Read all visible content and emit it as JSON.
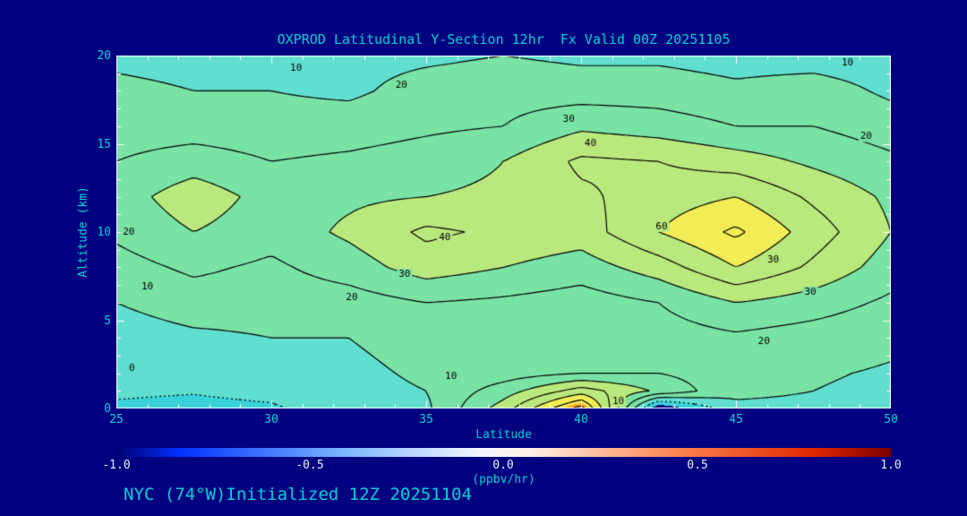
{
  "title": "OXPROD Latitudinal Y-Section 12hr  Fx Valid 00Z 20251105",
  "footer": "NYC (74°W)Initialized 12Z 20251104",
  "colors": {
    "background": "#000080",
    "text_accent": "#00d2d2",
    "axis": "#ffffff",
    "contour_line": "#000000",
    "colorbar_tick_text": "#e8eef5"
  },
  "chart_data": {
    "type": "heatmap",
    "title": "OXPROD Latitudinal Y-Section 12hr  Fx Valid 00Z 20251105",
    "xlabel": "Latitude",
    "ylabel": "Altitude (km)",
    "xlim": [
      25,
      50
    ],
    "ylim": [
      0,
      20
    ],
    "x_ticks": [
      "25",
      "30",
      "35",
      "40",
      "45",
      "50"
    ],
    "y_ticks": [
      "0",
      "5",
      "10",
      "15",
      "20"
    ],
    "lats": [
      25,
      27.5,
      30,
      32.5,
      35,
      37.5,
      40,
      42.5,
      45,
      47.5,
      50
    ],
    "alts": [
      0,
      1,
      2,
      4,
      6,
      8,
      10,
      12,
      14,
      16,
      18,
      20
    ],
    "values": [
      [
        -1,
        -2,
        -1,
        4,
        8,
        35,
        75,
        -20,
        8,
        8,
        6
      ],
      [
        1,
        0.5,
        2,
        6,
        10,
        25,
        45,
        28,
        12,
        10,
        8
      ],
      [
        2,
        3,
        5,
        7,
        12,
        15,
        20,
        20,
        14,
        11,
        9
      ],
      [
        5,
        8,
        10,
        10,
        15,
        12,
        12,
        15,
        18,
        15,
        12
      ],
      [
        10,
        15,
        14,
        15,
        20,
        18,
        15,
        20,
        30,
        25,
        18
      ],
      [
        16,
        22,
        18,
        25,
        35,
        30,
        25,
        35,
        50,
        38,
        25
      ],
      [
        22,
        30,
        24,
        32,
        42,
        38,
        35,
        50,
        62,
        45,
        30
      ],
      [
        25,
        36,
        26,
        28,
        30,
        32,
        38,
        45,
        50,
        38,
        28
      ],
      [
        20,
        25,
        20,
        22,
        25,
        30,
        42,
        40,
        35,
        28,
        22
      ],
      [
        15,
        15,
        14,
        15,
        18,
        20,
        28,
        25,
        20,
        20,
        15
      ],
      [
        12,
        10,
        10,
        8,
        14,
        16,
        15,
        15,
        12,
        15,
        8
      ],
      [
        8,
        7,
        8,
        7,
        8,
        10,
        8,
        8,
        6,
        5,
        4
      ]
    ],
    "contour_levels": [
      0,
      10,
      20,
      30,
      40,
      50,
      60,
      70
    ],
    "fill_bands": [
      {
        "max": -10,
        "color": "#000080"
      },
      {
        "max": 0,
        "color": "#38d2d8"
      },
      {
        "max": 10,
        "color": "#60ded0"
      },
      {
        "max": 30,
        "color": "#79e2a5"
      },
      {
        "max": 50,
        "color": "#b9e87d"
      },
      {
        "max": 65,
        "color": "#f2ec55"
      },
      {
        "max": 9999,
        "color": "#ffa929"
      }
    ],
    "contour_labels": [
      {
        "t": "10",
        "lat": 30.8,
        "alt": 19.3
      },
      {
        "t": "20",
        "lat": 34.2,
        "alt": 18.3
      },
      {
        "t": "30",
        "lat": 39.6,
        "alt": 16.4
      },
      {
        "t": "40",
        "lat": 40.3,
        "alt": 15.0
      },
      {
        "t": "10",
        "lat": 48.6,
        "alt": 19.6
      },
      {
        "t": "20",
        "lat": 49.2,
        "alt": 15.4
      },
      {
        "t": "20",
        "lat": 25.4,
        "alt": 10.0
      },
      {
        "t": "10",
        "lat": 26.0,
        "alt": 6.9
      },
      {
        "t": "0",
        "lat": 25.5,
        "alt": 2.3
      },
      {
        "t": "40",
        "lat": 35.6,
        "alt": 9.7
      },
      {
        "t": "30",
        "lat": 34.3,
        "alt": 7.6
      },
      {
        "t": "20",
        "lat": 32.6,
        "alt": 6.3
      },
      {
        "t": "60",
        "lat": 42.6,
        "alt": 10.3
      },
      {
        "t": "30",
        "lat": 46.2,
        "alt": 8.4
      },
      {
        "t": "10",
        "lat": 35.8,
        "alt": 1.8
      },
      {
        "t": "10",
        "lat": 41.2,
        "alt": 0.4
      },
      {
        "t": "20",
        "lat": 45.9,
        "alt": 3.8
      },
      {
        "t": "30",
        "lat": 47.4,
        "alt": 6.6
      }
    ],
    "colorbar": {
      "min": -1.0,
      "max": 1.0,
      "ticks": [
        "-1.0",
        "-0.5",
        "0.0",
        "0.5",
        "1.0"
      ],
      "label": "(ppbv/hr)",
      "stops": [
        [
          "0%",
          "#00006e"
        ],
        [
          "8%",
          "#0030ff"
        ],
        [
          "30%",
          "#7fb8ff"
        ],
        [
          "47%",
          "#f4f6ff"
        ],
        [
          "53%",
          "#fff2ea"
        ],
        [
          "70%",
          "#ff9060"
        ],
        [
          "90%",
          "#e02800"
        ],
        [
          "100%",
          "#7a0000"
        ]
      ]
    }
  }
}
